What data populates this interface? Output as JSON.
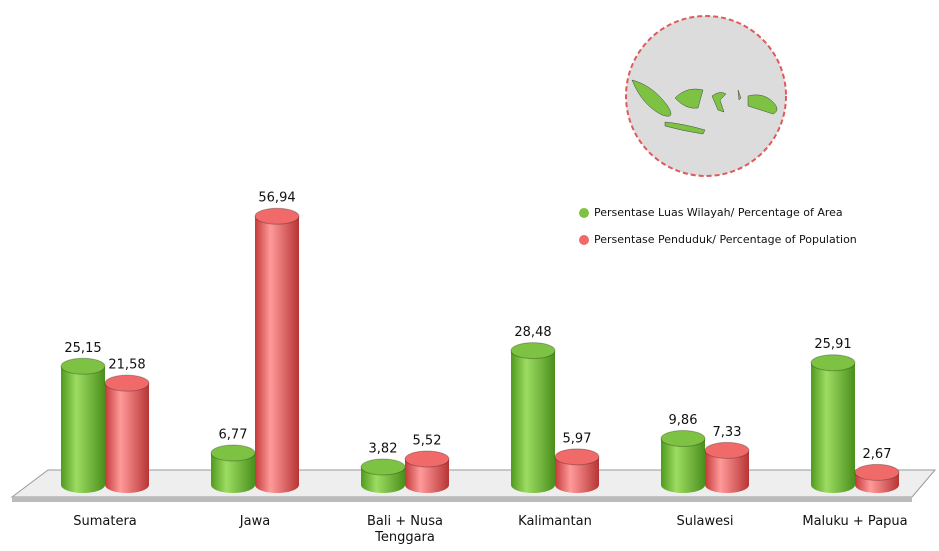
{
  "chart_data": {
    "type": "bar",
    "categories": [
      "Sumatera",
      "Jawa",
      "Bali + Nusa Tenggara",
      "Kalimantan",
      "Sulawesi",
      "Maluku + Papua"
    ],
    "series": [
      {
        "name": "Persentase Luas Wilayah/ Percentage of Area",
        "color": "#7dc242",
        "values": [
          25.15,
          6.77,
          3.82,
          28.48,
          9.86,
          25.91
        ],
        "value_labels": [
          "25,15",
          "6,77",
          "3,82",
          "28,48",
          "9,86",
          "25,91"
        ]
      },
      {
        "name": "Persentase Penduduk/ Percentage of Population",
        "color": "#f06a6a",
        "values": [
          21.58,
          56.94,
          5.52,
          5.97,
          7.33,
          2.67
        ],
        "value_labels": [
          "21,58",
          "56,94",
          "5,52",
          "5,97",
          "7,33",
          "2,67"
        ]
      }
    ]
  }
}
